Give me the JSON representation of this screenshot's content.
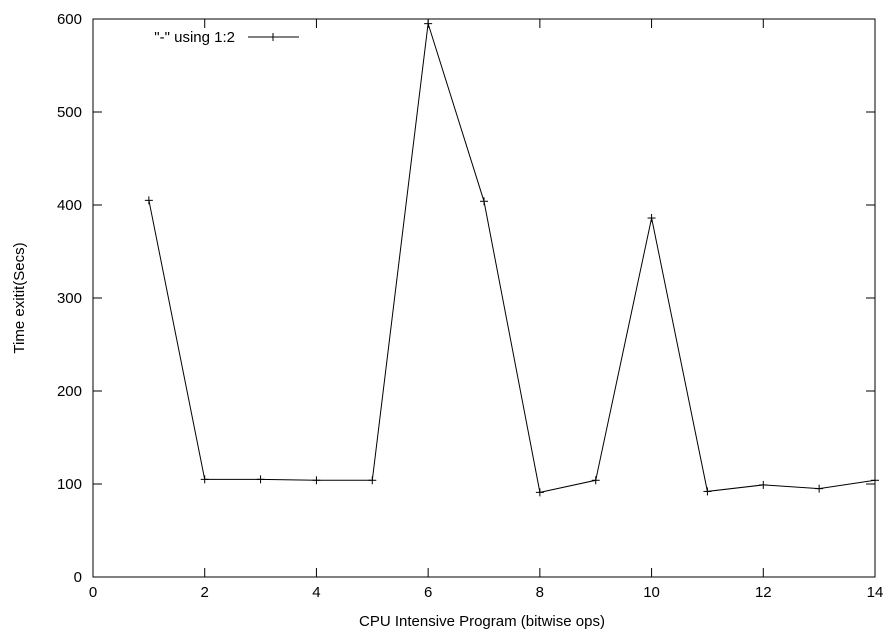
{
  "chart_data": {
    "type": "line",
    "title": "",
    "xlabel": "CPU Intensive Program (bitwise ops)",
    "ylabel": "Time  exitit(Secs)",
    "xlim": [
      0,
      14
    ],
    "ylim": [
      0,
      600
    ],
    "xticks": [
      0,
      2,
      4,
      6,
      8,
      10,
      12,
      14
    ],
    "yticks": [
      0,
      100,
      200,
      300,
      400,
      500,
      600
    ],
    "grid": false,
    "legend": {
      "position": "top-left"
    },
    "series": [
      {
        "name": "\"-\" using 1:2",
        "marker": "plus",
        "color": "#000000",
        "x": [
          1,
          2,
          3,
          4,
          5,
          6,
          7,
          8,
          9,
          10,
          11,
          12,
          13,
          14
        ],
        "y": [
          405,
          105,
          105,
          104,
          104,
          595,
          404,
          91,
          104,
          386,
          92,
          99,
          95,
          104
        ]
      }
    ]
  }
}
